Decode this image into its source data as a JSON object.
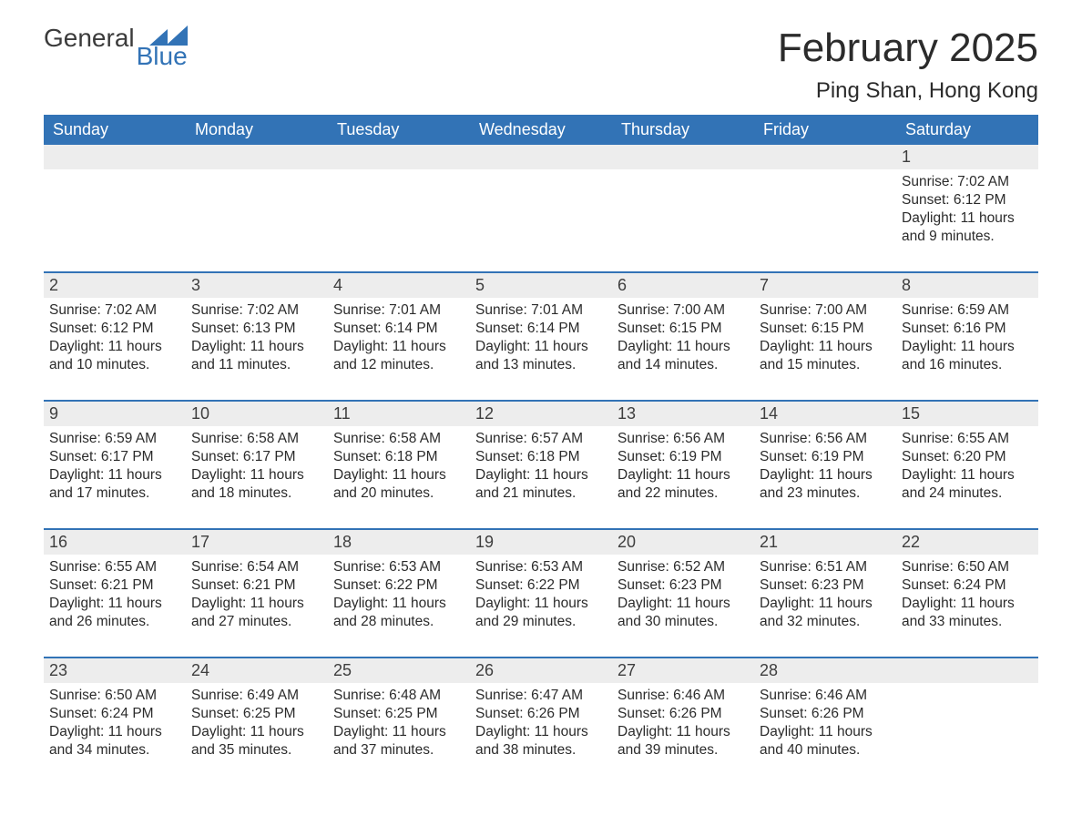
{
  "logo": {
    "general": "General",
    "blue": "Blue"
  },
  "header": {
    "month_title": "February 2025",
    "location": "Ping Shan, Hong Kong"
  },
  "colors": {
    "header_bg": "#3273b6",
    "header_text": "#ffffff",
    "daynum_bg": "#ededed",
    "daynum_text": "#3e3e3e",
    "body_text": "#2b2b2b",
    "row_divider": "#3273b6",
    "page_bg": "#ffffff"
  },
  "typography": {
    "month_title_fontsize": 44,
    "location_fontsize": 24,
    "dow_fontsize": 18,
    "daynum_fontsize": 18,
    "body_fontsize": 15.5
  },
  "days_of_week": [
    "Sunday",
    "Monday",
    "Tuesday",
    "Wednesday",
    "Thursday",
    "Friday",
    "Saturday"
  ],
  "labels": {
    "sunrise": "Sunrise:",
    "sunset": "Sunset:",
    "daylight": "Daylight:"
  },
  "weeks": [
    [
      null,
      null,
      null,
      null,
      null,
      null,
      {
        "num": "1",
        "sunrise": "7:02 AM",
        "sunset": "6:12 PM",
        "daylight_l1": "11 hours",
        "daylight_l2": "and 9 minutes."
      }
    ],
    [
      {
        "num": "2",
        "sunrise": "7:02 AM",
        "sunset": "6:12 PM",
        "daylight_l1": "11 hours",
        "daylight_l2": "and 10 minutes."
      },
      {
        "num": "3",
        "sunrise": "7:02 AM",
        "sunset": "6:13 PM",
        "daylight_l1": "11 hours",
        "daylight_l2": "and 11 minutes."
      },
      {
        "num": "4",
        "sunrise": "7:01 AM",
        "sunset": "6:14 PM",
        "daylight_l1": "11 hours",
        "daylight_l2": "and 12 minutes."
      },
      {
        "num": "5",
        "sunrise": "7:01 AM",
        "sunset": "6:14 PM",
        "daylight_l1": "11 hours",
        "daylight_l2": "and 13 minutes."
      },
      {
        "num": "6",
        "sunrise": "7:00 AM",
        "sunset": "6:15 PM",
        "daylight_l1": "11 hours",
        "daylight_l2": "and 14 minutes."
      },
      {
        "num": "7",
        "sunrise": "7:00 AM",
        "sunset": "6:15 PM",
        "daylight_l1": "11 hours",
        "daylight_l2": "and 15 minutes."
      },
      {
        "num": "8",
        "sunrise": "6:59 AM",
        "sunset": "6:16 PM",
        "daylight_l1": "11 hours",
        "daylight_l2": "and 16 minutes."
      }
    ],
    [
      {
        "num": "9",
        "sunrise": "6:59 AM",
        "sunset": "6:17 PM",
        "daylight_l1": "11 hours",
        "daylight_l2": "and 17 minutes."
      },
      {
        "num": "10",
        "sunrise": "6:58 AM",
        "sunset": "6:17 PM",
        "daylight_l1": "11 hours",
        "daylight_l2": "and 18 minutes."
      },
      {
        "num": "11",
        "sunrise": "6:58 AM",
        "sunset": "6:18 PM",
        "daylight_l1": "11 hours",
        "daylight_l2": "and 20 minutes."
      },
      {
        "num": "12",
        "sunrise": "6:57 AM",
        "sunset": "6:18 PM",
        "daylight_l1": "11 hours",
        "daylight_l2": "and 21 minutes."
      },
      {
        "num": "13",
        "sunrise": "6:56 AM",
        "sunset": "6:19 PM",
        "daylight_l1": "11 hours",
        "daylight_l2": "and 22 minutes."
      },
      {
        "num": "14",
        "sunrise": "6:56 AM",
        "sunset": "6:19 PM",
        "daylight_l1": "11 hours",
        "daylight_l2": "and 23 minutes."
      },
      {
        "num": "15",
        "sunrise": "6:55 AM",
        "sunset": "6:20 PM",
        "daylight_l1": "11 hours",
        "daylight_l2": "and 24 minutes."
      }
    ],
    [
      {
        "num": "16",
        "sunrise": "6:55 AM",
        "sunset": "6:21 PM",
        "daylight_l1": "11 hours",
        "daylight_l2": "and 26 minutes."
      },
      {
        "num": "17",
        "sunrise": "6:54 AM",
        "sunset": "6:21 PM",
        "daylight_l1": "11 hours",
        "daylight_l2": "and 27 minutes."
      },
      {
        "num": "18",
        "sunrise": "6:53 AM",
        "sunset": "6:22 PM",
        "daylight_l1": "11 hours",
        "daylight_l2": "and 28 minutes."
      },
      {
        "num": "19",
        "sunrise": "6:53 AM",
        "sunset": "6:22 PM",
        "daylight_l1": "11 hours",
        "daylight_l2": "and 29 minutes."
      },
      {
        "num": "20",
        "sunrise": "6:52 AM",
        "sunset": "6:23 PM",
        "daylight_l1": "11 hours",
        "daylight_l2": "and 30 minutes."
      },
      {
        "num": "21",
        "sunrise": "6:51 AM",
        "sunset": "6:23 PM",
        "daylight_l1": "11 hours",
        "daylight_l2": "and 32 minutes."
      },
      {
        "num": "22",
        "sunrise": "6:50 AM",
        "sunset": "6:24 PM",
        "daylight_l1": "11 hours",
        "daylight_l2": "and 33 minutes."
      }
    ],
    [
      {
        "num": "23",
        "sunrise": "6:50 AM",
        "sunset": "6:24 PM",
        "daylight_l1": "11 hours",
        "daylight_l2": "and 34 minutes."
      },
      {
        "num": "24",
        "sunrise": "6:49 AM",
        "sunset": "6:25 PM",
        "daylight_l1": "11 hours",
        "daylight_l2": "and 35 minutes."
      },
      {
        "num": "25",
        "sunrise": "6:48 AM",
        "sunset": "6:25 PM",
        "daylight_l1": "11 hours",
        "daylight_l2": "and 37 minutes."
      },
      {
        "num": "26",
        "sunrise": "6:47 AM",
        "sunset": "6:26 PM",
        "daylight_l1": "11 hours",
        "daylight_l2": "and 38 minutes."
      },
      {
        "num": "27",
        "sunrise": "6:46 AM",
        "sunset": "6:26 PM",
        "daylight_l1": "11 hours",
        "daylight_l2": "and 39 minutes."
      },
      {
        "num": "28",
        "sunrise": "6:46 AM",
        "sunset": "6:26 PM",
        "daylight_l1": "11 hours",
        "daylight_l2": "and 40 minutes."
      },
      null
    ]
  ]
}
